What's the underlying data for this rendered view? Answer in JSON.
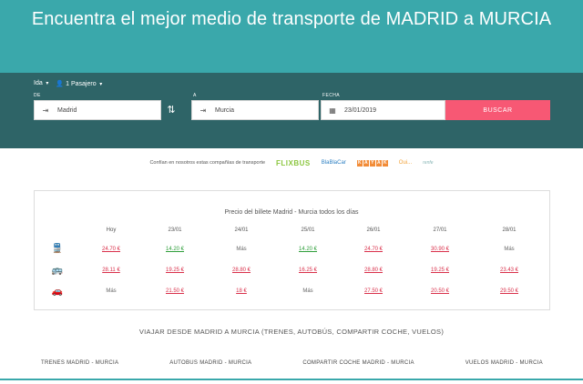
{
  "hero": {
    "title": "Encuentra el mejor medio de transporte de MADRID a MURCIA"
  },
  "search": {
    "trip_type": "Ida",
    "passengers": "1 Pasajero",
    "from_label": "DE",
    "to_label": "A",
    "date_label": "FECHA",
    "from_value": "Madrid",
    "to_value": "Murcia",
    "date_value": "23/01/2019",
    "search_button": "BUSCAR"
  },
  "partners": {
    "intro": "Confían en nosotros estas compañías de transporte",
    "flixbus": "FLIXBUS",
    "blablacar": "BlaBlaCar",
    "kayak": [
      "K",
      "A",
      "Y",
      "A",
      "K"
    ],
    "ouigo": "Oui...",
    "renfe": "renfe"
  },
  "prices": {
    "title": "Precio del billete Madrid - Murcia todos los días",
    "columns": [
      "Hoy",
      "23/01",
      "24/01",
      "25/01",
      "26/01",
      "27/01",
      "28/01"
    ],
    "rows": [
      {
        "icon": "train-icon",
        "cells": [
          {
            "text": "24.70 €",
            "color": "red"
          },
          {
            "text": "14.20 €",
            "color": "green"
          },
          {
            "text": "Más",
            "color": "gray"
          },
          {
            "text": "14.20 €",
            "color": "green"
          },
          {
            "text": "24.70 €",
            "color": "red"
          },
          {
            "text": "30.90 €",
            "color": "red"
          },
          {
            "text": "Más",
            "color": "gray"
          }
        ]
      },
      {
        "icon": "bus-icon",
        "cells": [
          {
            "text": "28.11 €",
            "color": "red"
          },
          {
            "text": "19.25 €",
            "color": "red"
          },
          {
            "text": "28.80 €",
            "color": "red"
          },
          {
            "text": "16.25 €",
            "color": "red"
          },
          {
            "text": "28.80 €",
            "color": "red"
          },
          {
            "text": "19.25 €",
            "color": "red"
          },
          {
            "text": "23.43 €",
            "color": "red"
          }
        ]
      },
      {
        "icon": "car-icon",
        "cells": [
          {
            "text": "Más",
            "color": "gray"
          },
          {
            "text": "21.50 €",
            "color": "red"
          },
          {
            "text": "18 €",
            "color": "red"
          },
          {
            "text": "Más",
            "color": "gray"
          },
          {
            "text": "27.50 €",
            "color": "red"
          },
          {
            "text": "20.50 €",
            "color": "red"
          },
          {
            "text": "29.50 €",
            "color": "red"
          }
        ]
      }
    ]
  },
  "section": {
    "title": "VIAJAR DESDE MADRID A MURCIA (TRENES, AUTOBÚS, COMPARTIR COCHE, VUELOS)",
    "links": [
      "TRENES MADRID - MURCIA",
      "AUTOBUS MADRID - MURCIA",
      "COMPARTIR COCHE MADRID - MURCIA",
      "VUELOS MADRID - MURCIA"
    ]
  },
  "colors": {
    "teal": "#3aa8ab",
    "dark_teal": "#2e6467",
    "cta": "#f75874"
  }
}
